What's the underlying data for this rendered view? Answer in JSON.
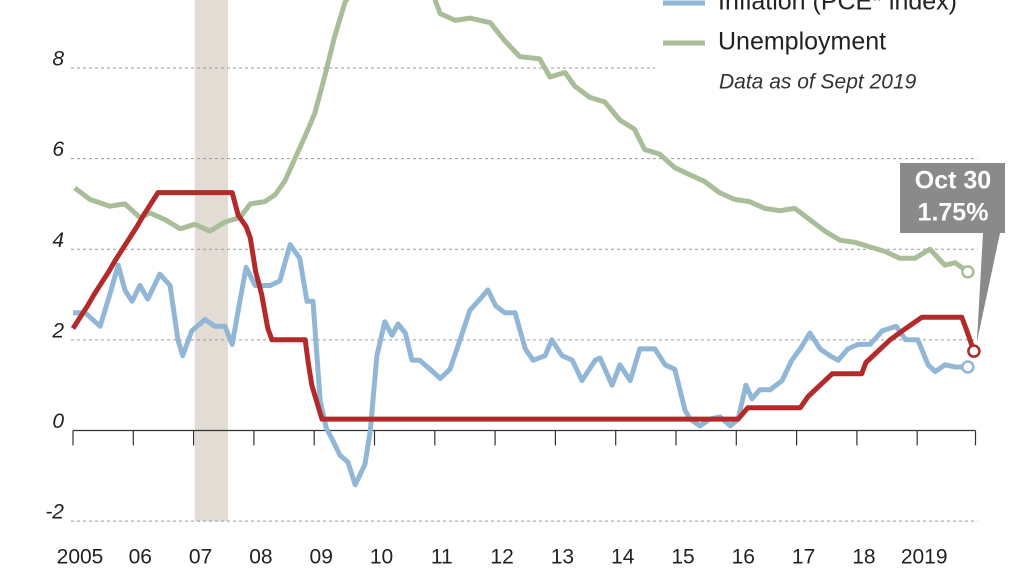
{
  "chart_data": {
    "type": "line",
    "xlim": [
      2005,
      2020
    ],
    "ylim": [
      -3.3,
      9.5
    ],
    "xticks": [
      {
        "value": 2005,
        "label": "2005"
      },
      {
        "value": 2006,
        "label": "06"
      },
      {
        "value": 2007,
        "label": "07"
      },
      {
        "value": 2008,
        "label": "08"
      },
      {
        "value": 2009,
        "label": "09"
      },
      {
        "value": 2010,
        "label": "10"
      },
      {
        "value": 2011,
        "label": "11"
      },
      {
        "value": 2012,
        "label": "12"
      },
      {
        "value": 2013,
        "label": "13"
      },
      {
        "value": 2014,
        "label": "14"
      },
      {
        "value": 2015,
        "label": "15"
      },
      {
        "value": 2016,
        "label": "16"
      },
      {
        "value": 2017,
        "label": "17"
      },
      {
        "value": 2018,
        "label": "18"
      },
      {
        "value": 2019,
        "label": "2019"
      }
    ],
    "yticks": [
      -2,
      0,
      2,
      4,
      6,
      8
    ],
    "grid": true,
    "shade": [
      2007.02,
      2007.57
    ],
    "shade_color": "#e2dcd4",
    "note": "Data as of Sept 2019",
    "annotation": [
      "Oct 30",
      "1.75%"
    ],
    "series": [
      {
        "color": "#b22a2a",
        "x": [
          2005.0,
          2005.12,
          2005.24,
          2005.35,
          2005.47,
          2005.59,
          2005.7,
          2005.82,
          2005.94,
          2006.06,
          2006.17,
          2006.29,
          2006.41,
          2007.64,
          2007.74,
          2007.87,
          2007.94,
          2008.03,
          2008.13,
          2008.23,
          2008.3,
          2008.85,
          2008.9,
          2008.96,
          2009.13,
          2016.03,
          2016.19,
          2017.06,
          2017.19,
          2017.39,
          2017.59,
          2018.08,
          2018.15,
          2018.35,
          2018.55,
          2018.81,
          2019.08,
          2019.74,
          2019.81,
          2019.94
        ],
        "values": [
          2.25,
          2.5,
          2.75,
          3.0,
          3.25,
          3.5,
          3.75,
          4.0,
          4.25,
          4.5,
          4.75,
          5.0,
          5.25,
          5.25,
          4.75,
          4.5,
          4.25,
          3.5,
          3.0,
          2.25,
          2.0,
          2.0,
          1.5,
          1.0,
          0.25,
          0.25,
          0.5,
          0.5,
          0.75,
          1.0,
          1.25,
          1.25,
          1.5,
          1.75,
          2.0,
          2.25,
          2.5,
          2.5,
          2.25,
          1.75
        ]
      },
      {
        "name": "Inflation (PCE* index)",
        "color": "#92b7d6",
        "x": [
          2005.0,
          2005.2,
          2005.45,
          2005.61,
          2005.75,
          2005.86,
          2005.98,
          2006.11,
          2006.24,
          2006.44,
          2006.61,
          2006.74,
          2006.82,
          2006.97,
          2007.19,
          2007.35,
          2007.52,
          2007.64,
          2007.74,
          2007.87,
          2008.02,
          2008.27,
          2008.43,
          2008.6,
          2008.76,
          2008.88,
          2008.98,
          2009.1,
          2009.2,
          2009.3,
          2009.43,
          2009.56,
          2009.68,
          2009.84,
          2009.93,
          2010.04,
          2010.17,
          2010.29,
          2010.39,
          2010.51,
          2010.62,
          2010.75,
          2010.92,
          2011.09,
          2011.25,
          2011.42,
          2011.58,
          2011.75,
          2011.88,
          2012.01,
          2012.16,
          2012.33,
          2012.5,
          2012.63,
          2012.83,
          2012.94,
          2013.11,
          2013.28,
          2013.44,
          2013.66,
          2013.74,
          2013.94,
          2014.07,
          2014.24,
          2014.4,
          2014.65,
          2014.82,
          2014.98,
          2015.15,
          2015.23,
          2015.4,
          2015.56,
          2015.73,
          2015.9,
          2016.03,
          2016.16,
          2016.26,
          2016.39,
          2016.56,
          2016.76,
          2016.92,
          2017.06,
          2017.22,
          2017.39,
          2017.55,
          2017.69,
          2017.85,
          2018.02,
          2018.22,
          2018.42,
          2018.65,
          2018.81,
          2019.01,
          2019.18,
          2019.3,
          2019.46,
          2019.63,
          2019.84
        ],
        "values": [
          2.6,
          2.6,
          2.3,
          3.0,
          3.65,
          3.1,
          2.85,
          3.2,
          2.9,
          3.45,
          3.2,
          2.0,
          1.65,
          2.2,
          2.45,
          2.3,
          2.3,
          1.9,
          2.65,
          3.6,
          3.2,
          3.2,
          3.3,
          4.1,
          3.8,
          2.85,
          2.85,
          0.65,
          0.05,
          -0.2,
          -0.55,
          -0.7,
          -1.2,
          -0.75,
          0.0,
          1.65,
          2.4,
          2.1,
          2.35,
          2.15,
          1.55,
          1.55,
          1.35,
          1.15,
          1.35,
          2.0,
          2.65,
          2.9,
          3.1,
          2.75,
          2.6,
          2.6,
          1.8,
          1.55,
          1.65,
          2.0,
          1.65,
          1.55,
          1.1,
          1.55,
          1.6,
          1.0,
          1.45,
          1.1,
          1.8,
          1.8,
          1.45,
          1.35,
          0.45,
          0.25,
          0.1,
          0.25,
          0.3,
          0.1,
          0.25,
          1.0,
          0.7,
          0.9,
          0.9,
          1.1,
          1.55,
          1.8,
          2.15,
          1.8,
          1.65,
          1.55,
          1.8,
          1.9,
          1.9,
          2.2,
          2.3,
          2.0,
          2.0,
          1.45,
          1.3,
          1.45,
          1.4,
          1.4
        ]
      },
      {
        "name": "Unemployment",
        "color": "#a8bd98",
        "x": [
          2005.03,
          2005.28,
          2005.61,
          2005.86,
          2006.11,
          2006.28,
          2006.53,
          2006.78,
          2007.02,
          2007.27,
          2007.52,
          2007.77,
          2007.94,
          2008.18,
          2008.35,
          2008.51,
          2008.68,
          2008.85,
          2009.01,
          2009.18,
          2009.34,
          2009.51,
          2009.68,
          2009.93,
          2010.26,
          2010.59,
          2010.92,
          2011.09,
          2011.34,
          2011.58,
          2011.92,
          2012.16,
          2012.41,
          2012.74,
          2012.91,
          2013.16,
          2013.32,
          2013.57,
          2013.82,
          2014.07,
          2014.31,
          2014.48,
          2014.73,
          2014.98,
          2015.22,
          2015.47,
          2015.72,
          2015.97,
          2016.22,
          2016.47,
          2016.72,
          2016.97,
          2017.22,
          2017.47,
          2017.72,
          2017.97,
          2018.22,
          2018.47,
          2018.71,
          2018.96,
          2019.21,
          2019.46,
          2019.63,
          2019.84
        ],
        "values": [
          5.35,
          5.1,
          4.95,
          5.0,
          4.7,
          4.8,
          4.65,
          4.45,
          4.55,
          4.4,
          4.6,
          4.7,
          5.0,
          5.05,
          5.2,
          5.5,
          6.0,
          6.5,
          7.0,
          7.85,
          8.7,
          9.45,
          9.8,
          9.9,
          10.0,
          9.9,
          9.8,
          9.2,
          9.05,
          9.1,
          9.0,
          8.6,
          8.25,
          8.2,
          7.8,
          7.9,
          7.6,
          7.35,
          7.25,
          6.85,
          6.65,
          6.2,
          6.1,
          5.8,
          5.65,
          5.5,
          5.25,
          5.1,
          5.05,
          4.9,
          4.85,
          4.9,
          4.65,
          4.4,
          4.2,
          4.15,
          4.05,
          3.95,
          3.8,
          3.8,
          4.0,
          3.65,
          3.7,
          3.5
        ]
      }
    ]
  }
}
